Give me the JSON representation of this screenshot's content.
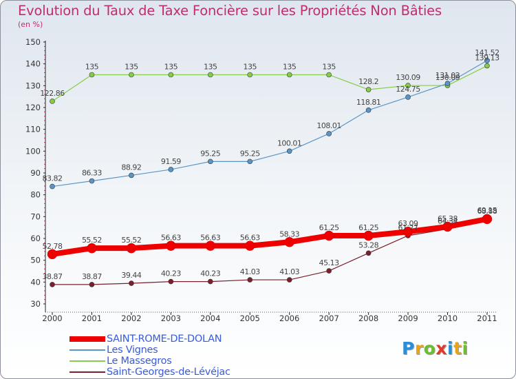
{
  "header": {
    "title": "Evolution du Taux de Taxe Foncière sur les Propriétés Non Bâties",
    "unit": "(en %)"
  },
  "chart_data": {
    "type": "line",
    "title": "Evolution du Taux de Taxe Foncière sur les Propriétés Non Bâties",
    "ylabel": "(en %)",
    "xlabel": "",
    "ylim": [
      30,
      150
    ],
    "yticks": [
      30,
      40,
      50,
      60,
      70,
      80,
      90,
      100,
      110,
      120,
      130,
      140,
      150
    ],
    "categories": [
      "2000",
      "2001",
      "2002",
      "2003",
      "2004",
      "2005",
      "2006",
      "2007",
      "2008",
      "2009",
      "2010",
      "2011"
    ],
    "series": [
      {
        "name": "SAINT-ROME-DE-DOLAN",
        "color": "#ee0000",
        "values": [
          52.78,
          55.52,
          55.52,
          56.63,
          56.63,
          56.63,
          58.33,
          61.25,
          61.25,
          63.09,
          65.38,
          68.88
        ],
        "labels": [
          "52.78",
          "55.52",
          "55.52",
          "56.63",
          "56.63",
          "56.63",
          "58.33",
          "61.25",
          "61.25",
          "63.09",
          "65.38",
          "68.88"
        ]
      },
      {
        "name": "Les Vignes",
        "color": "#5a95c7",
        "values": [
          83.82,
          86.33,
          88.92,
          91.59,
          95.25,
          95.25,
          100.01,
          108.01,
          118.81,
          124.75,
          131.02,
          141.52
        ],
        "labels": [
          "83.82",
          "86.33",
          "88.92",
          "91.59",
          "95.25",
          "95.25",
          "100.01",
          "108.01",
          "118.81",
          "124.75",
          "131.02",
          "141.52"
        ]
      },
      {
        "name": "Le Massegros",
        "color": "#86cc4c",
        "values": [
          122.86,
          135,
          135,
          135,
          135,
          135,
          135,
          135,
          128.2,
          130.09,
          130.09,
          139.13
        ],
        "labels": [
          "122.86",
          "135",
          "135",
          "135",
          "135",
          "135",
          "135",
          "135",
          "128.2",
          "130.09",
          "130.09",
          "139.13"
        ]
      },
      {
        "name": "Saint-Georges-de-Lévéjac",
        "color": "#7a1f2b",
        "values": [
          38.87,
          38.87,
          39.44,
          40.23,
          40.23,
          41.03,
          41.03,
          45.13,
          53.28,
          61.27,
          64.34,
          69.15
        ],
        "labels": [
          "38.87",
          "38.87",
          "39.44",
          "40.23",
          "40.23",
          "41.03",
          "41.03",
          "45.13",
          "53.28",
          "61.27",
          "64.34",
          "69.15"
        ]
      }
    ],
    "legend": "bottom-left",
    "grid": false
  },
  "legend": {
    "items": [
      "SAINT-ROME-DE-DOLAN",
      "Les Vignes",
      "Le Massegros",
      "Saint-Georges-de-Lévéjac"
    ]
  },
  "logo": {
    "letters": [
      "P",
      "r",
      "o",
      "x",
      "i",
      "t",
      "i"
    ],
    "colors": [
      "#2a8fd8",
      "#e8a317",
      "#6cbf2a",
      "#e23a2a",
      "#2a8fd8",
      "#e8a317",
      "#6cbf2a"
    ]
  }
}
